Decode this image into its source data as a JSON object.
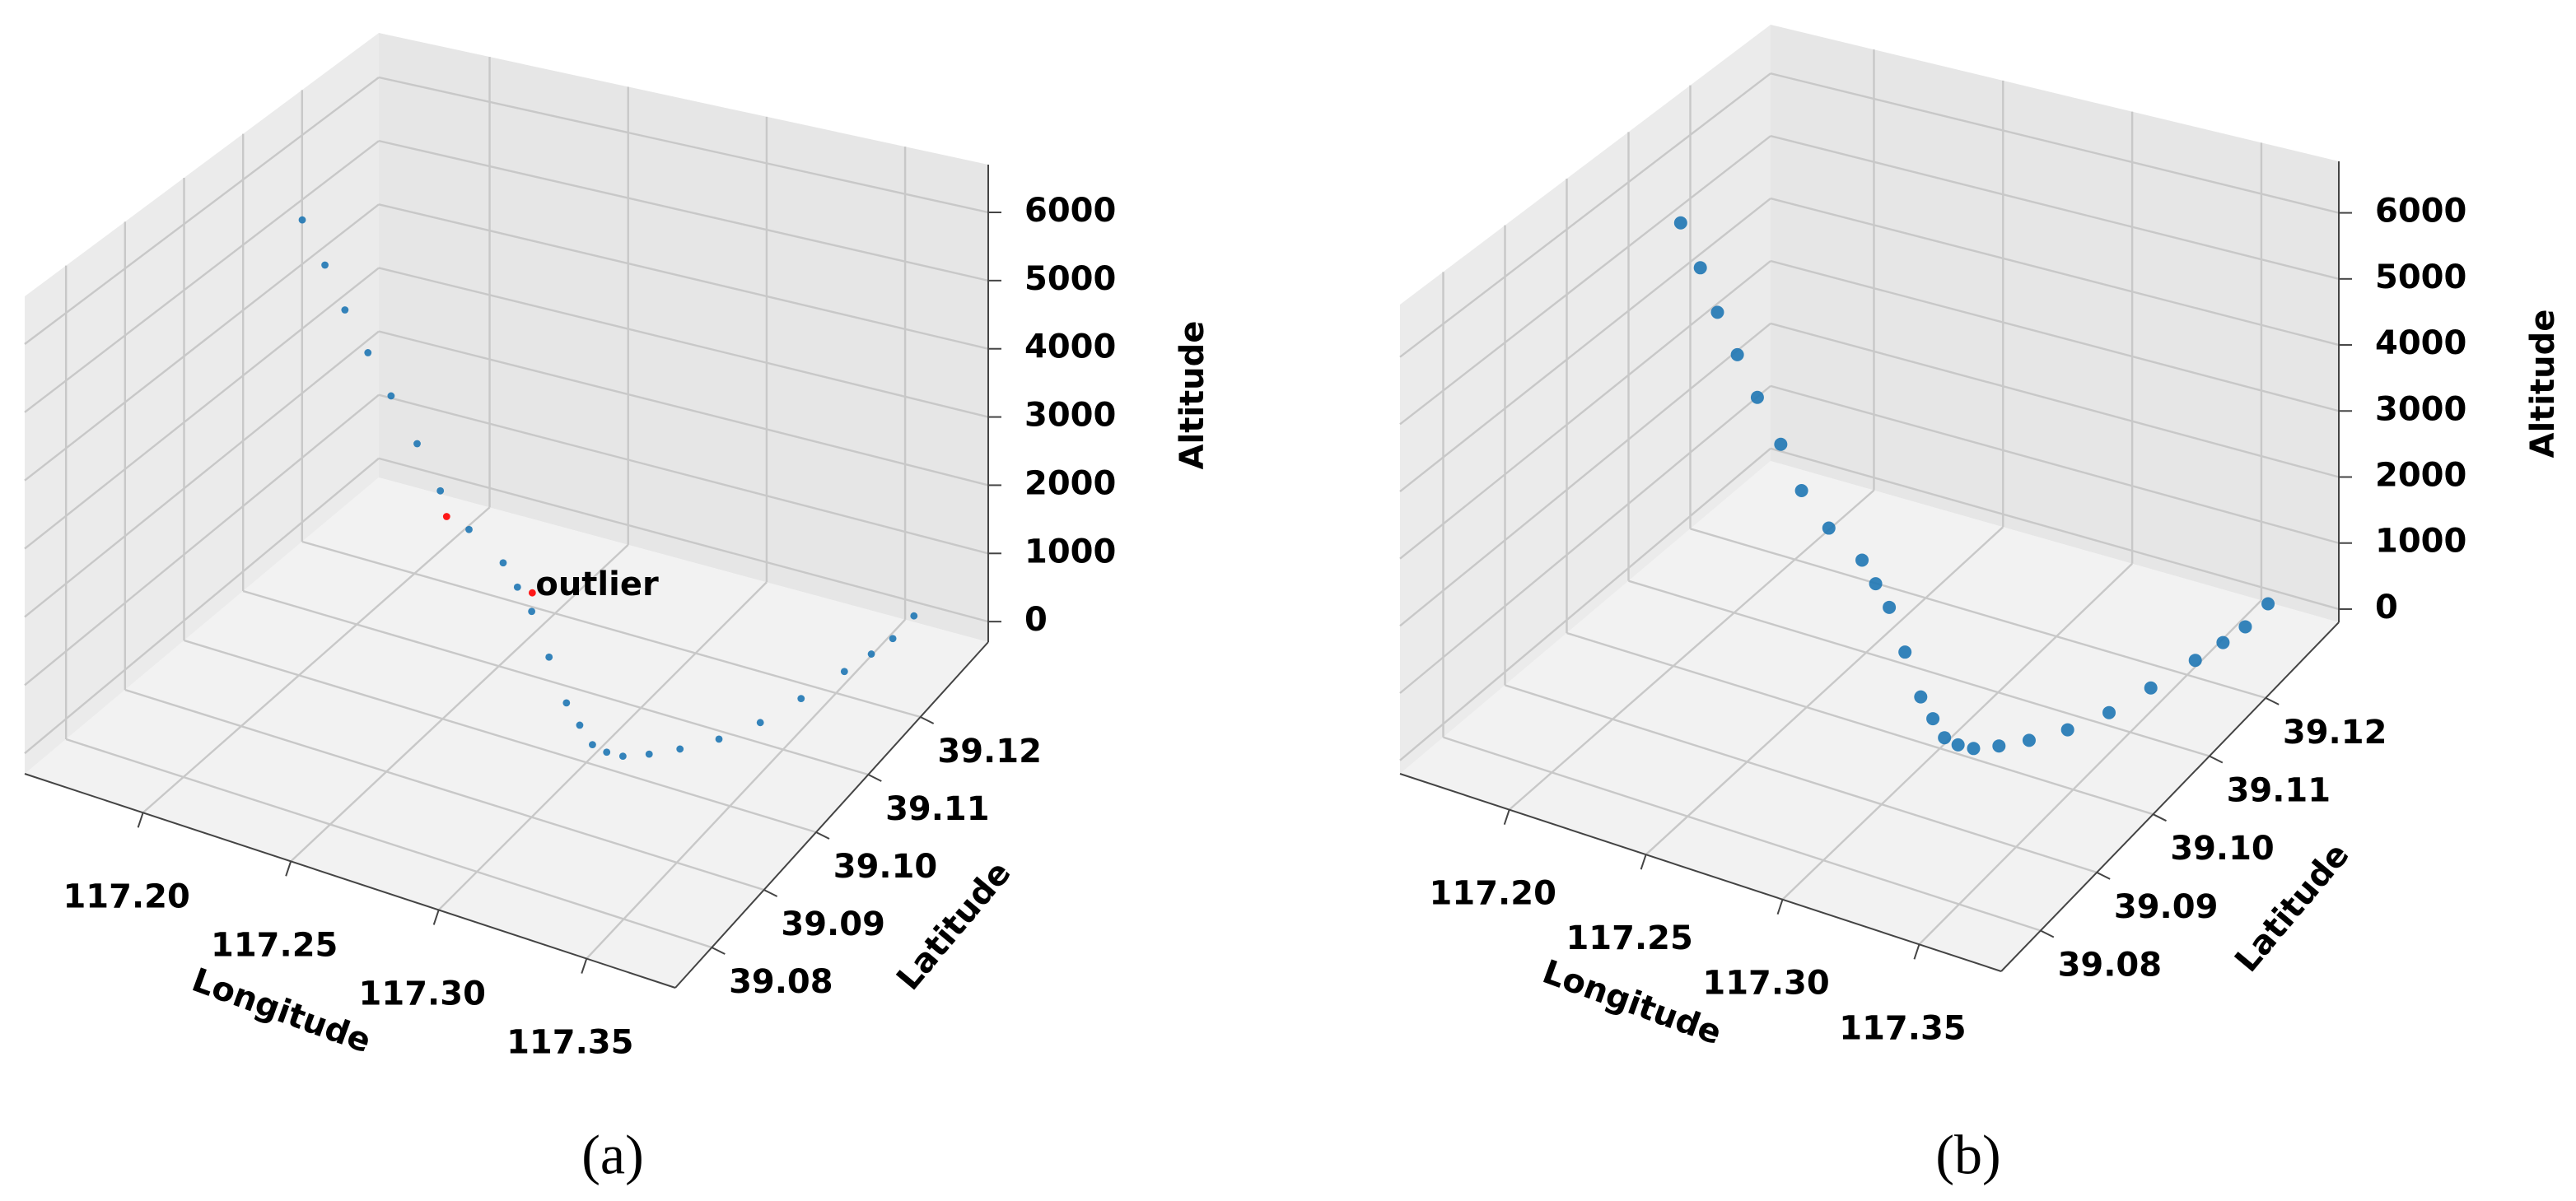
{
  "chart_data": [
    {
      "type": "scatter3d",
      "label": "(a)",
      "xlabel": "Longitude",
      "ylabel": "Latitude",
      "zlabel": "Altitude",
      "xlim": [
        117.16,
        117.38
      ],
      "ylim": [
        39.073,
        39.133
      ],
      "zlim": [
        -300,
        6700
      ],
      "xticks": [
        {
          "value": 117.2,
          "label": "117.20"
        },
        {
          "value": 117.25,
          "label": "117.25"
        },
        {
          "value": 117.3,
          "label": "117.30"
        },
        {
          "value": 117.35,
          "label": "117.35"
        }
      ],
      "yticks": [
        {
          "value": 39.08,
          "label": "39.08"
        },
        {
          "value": 39.09,
          "label": "39.09"
        },
        {
          "value": 39.1,
          "label": "39.10"
        },
        {
          "value": 39.11,
          "label": "39.11"
        },
        {
          "value": 39.12,
          "label": "39.12"
        }
      ],
      "zticks": [
        0,
        1000,
        2000,
        3000,
        4000,
        5000,
        6000
      ],
      "series": [
        {
          "color": "#1f77b4",
          "x": [
            117.189,
            117.201,
            117.212,
            117.224,
            117.236,
            117.247,
            117.257,
            117.265,
            117.273,
            117.277,
            117.281,
            117.288,
            117.295,
            117.3,
            117.305,
            117.309,
            117.3135,
            117.32,
            117.327,
            117.335,
            117.342,
            117.347,
            117.352,
            117.355,
            117.357,
            117.357
          ],
          "y": [
            39.106,
            39.104,
            39.102,
            39.1,
            39.098,
            39.097,
            39.096,
            39.097,
            39.099,
            39.0995,
            39.1,
            39.0995,
            39.099,
            39.0988,
            39.0985,
            39.099,
            39.0996,
            39.101,
            39.103,
            39.106,
            39.11,
            39.115,
            39.1205,
            39.124,
            39.127,
            39.131
          ],
          "z": [
            6000,
            5600,
            5200,
            4850,
            4500,
            4000,
            3500,
            2950,
            2400,
            2050,
            1700,
            1150,
            600,
            350,
            150,
            50,
            0,
            0,
            0,
            0,
            0,
            0,
            0,
            0,
            0,
            0
          ]
        },
        {
          "color": "#ff0000",
          "x": [
            117.237,
            117.276
          ],
          "y": [
            39.1073,
            39.1027
          ],
          "z": [
            2000,
            1700
          ]
        }
      ],
      "annotations": [
        {
          "text": "outlier",
          "color": "#ff0000"
        }
      ]
    },
    {
      "type": "scatter3d",
      "label": "(b)",
      "xlabel": "Longitude",
      "ylabel": "Latitude",
      "zlabel": "Altitude",
      "xlim": [
        117.16,
        117.38
      ],
      "ylim": [
        39.073,
        39.133
      ],
      "zlim": [
        -200,
        6780
      ],
      "xticks": [
        {
          "value": 117.2,
          "label": "117.20"
        },
        {
          "value": 117.25,
          "label": "117.25"
        },
        {
          "value": 117.3,
          "label": "117.30"
        },
        {
          "value": 117.35,
          "label": "117.35"
        }
      ],
      "yticks": [
        {
          "value": 39.08,
          "label": "39.08"
        },
        {
          "value": 39.09,
          "label": "39.09"
        },
        {
          "value": 39.1,
          "label": "39.10"
        },
        {
          "value": 39.11,
          "label": "39.11"
        },
        {
          "value": 39.12,
          "label": "39.12"
        }
      ],
      "zticks": [
        0,
        1000,
        2000,
        3000,
        4000,
        5000,
        6000
      ],
      "series": [
        {
          "color": "#1f77b4",
          "x": [
            117.189,
            117.201,
            117.212,
            117.224,
            117.236,
            117.247,
            117.257,
            117.265,
            117.273,
            117.277,
            117.281,
            117.288,
            117.295,
            117.3,
            117.305,
            117.309,
            117.3135,
            117.32,
            117.327,
            117.335,
            117.342,
            117.347,
            117.352,
            117.355,
            117.357,
            117.357
          ],
          "y": [
            39.106,
            39.104,
            39.102,
            39.1,
            39.098,
            39.097,
            39.096,
            39.097,
            39.099,
            39.0995,
            39.1,
            39.0995,
            39.099,
            39.0988,
            39.0985,
            39.099,
            39.0996,
            39.101,
            39.103,
            39.106,
            39.11,
            39.115,
            39.1205,
            39.124,
            39.127,
            39.131
          ],
          "z": [
            6000,
            5600,
            5200,
            4850,
            4500,
            4000,
            3500,
            2950,
            2400,
            2050,
            1700,
            1150,
            600,
            350,
            150,
            50,
            0,
            0,
            0,
            0,
            0,
            0,
            0,
            0,
            0,
            0
          ]
        }
      ]
    }
  ]
}
